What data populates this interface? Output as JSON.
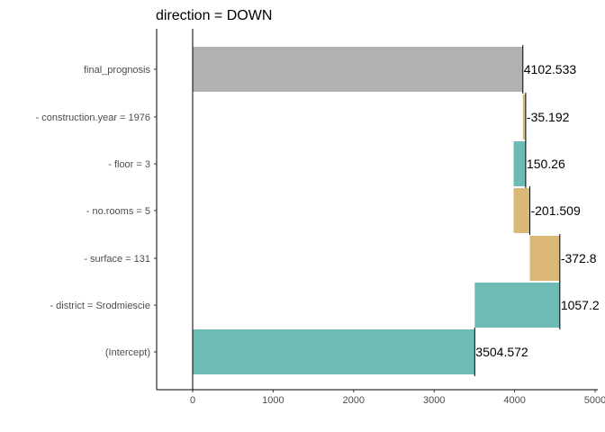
{
  "chart_data": {
    "type": "bar",
    "subtype": "waterfall",
    "title": "direction = DOWN",
    "xlabel": "",
    "ylabel": "",
    "xlim": [
      -450,
      5000
    ],
    "x_ticks": [
      0,
      1000,
      2000,
      3000,
      4000,
      5000
    ],
    "x_tick_labels": [
      "0",
      "1000",
      "2000",
      "3000",
      "4000",
      "5000"
    ],
    "grid": false,
    "legend": "none",
    "colors": {
      "negative": "#6cbbb4",
      "positive": "#dbb878",
      "prediction": "#b1b1b1"
    },
    "categories": [
      "final_prognosis",
      "- construction.year = 1976",
      "- floor = 3",
      "- no.rooms = 5",
      "- surface = 131",
      "- district = Srodmiescie",
      "(Intercept)"
    ],
    "bars": [
      {
        "category": "final_prognosis",
        "start": 0,
        "end": 4102.533,
        "label": "4102.533",
        "kind": "prediction"
      },
      {
        "category": "- construction.year = 1976",
        "start": 4102.533,
        "end": 4137.725,
        "label": "-35.192",
        "kind": "positive"
      },
      {
        "category": "- floor = 3",
        "start": 3987.465,
        "end": 4137.725,
        "label": "150.26",
        "kind": "negative"
      },
      {
        "category": "- no.rooms = 5",
        "start": 3987.465,
        "end": 4188.974,
        "label": "-201.509",
        "kind": "positive"
      },
      {
        "category": "- surface = 131",
        "start": 4188.974,
        "end": 4561.774,
        "label": "-372.8",
        "kind": "positive"
      },
      {
        "category": "- district = Srodmiescie",
        "start": 3504.572,
        "end": 4561.774,
        "label": "1057.2",
        "kind": "negative"
      },
      {
        "category": "(Intercept)",
        "start": 0,
        "end": 3504.572,
        "label": "3504.572",
        "kind": "negative"
      }
    ]
  }
}
